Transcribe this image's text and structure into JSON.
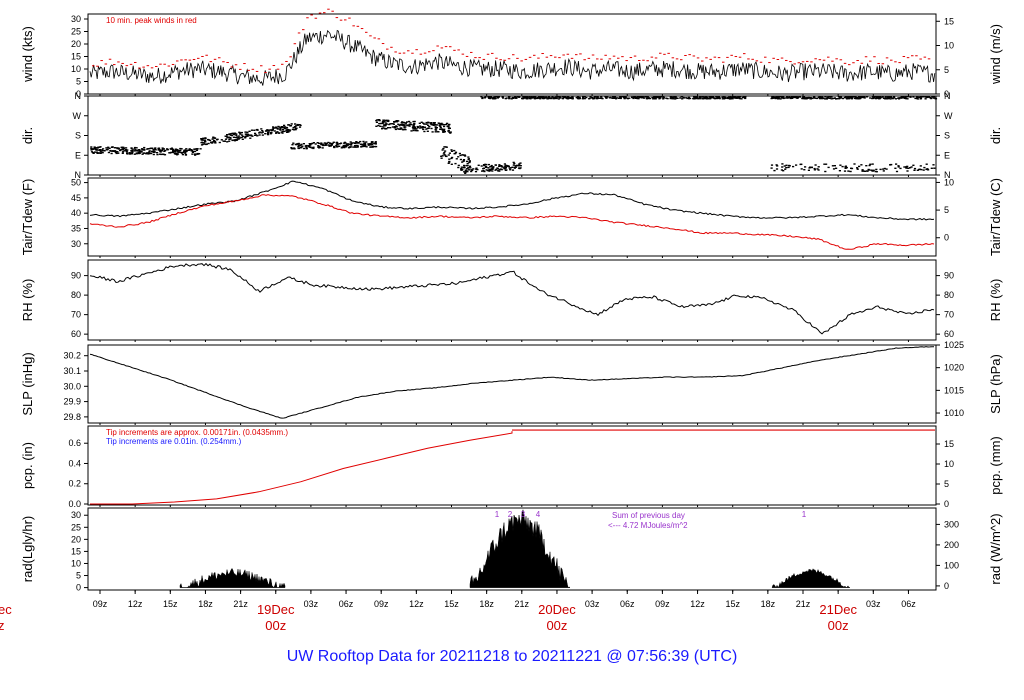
{
  "title": "UW Rooftop Data for 20211218  to  20211221 @ 07:56:39  (UTC)",
  "colors": {
    "main": "#000000",
    "dew": "#e00000",
    "precip": "#e00000",
    "title": "#1a1aff",
    "note_blue": "#1a1aff",
    "purple": "#9933cc",
    "date": "#cc0000"
  },
  "time_axis": {
    "ticks": [
      "09z",
      "12z",
      "15z",
      "18z",
      "21z",
      "03z",
      "06z",
      "09z",
      "12z",
      "15z",
      "18z",
      "21z",
      "03z",
      "06z",
      "09z",
      "12z",
      "15z",
      "18z",
      "21z",
      "03z",
      "06z"
    ],
    "day_labels": [
      {
        "date": "19Dec",
        "time": "00z"
      },
      {
        "date": "20Dec",
        "time": "00z"
      },
      {
        "date": "21Dec",
        "time": "00z"
      }
    ],
    "left_cut": {
      "date": "ec",
      "time": "z"
    }
  },
  "chart_data": [
    {
      "type": "line",
      "id": "wind",
      "ylabel_left": "wind (kts)",
      "ylabel_right": "wind (m/s)",
      "yticks_left": [
        "0",
        "5",
        "10",
        "15",
        "20",
        "25",
        "30"
      ],
      "yticks_right": [
        "0",
        "5",
        "10",
        "15"
      ],
      "annotation": "10 min. peak winds in red",
      "series": [
        {
          "name": "wind",
          "points_y_kts": [
            8,
            9,
            8,
            7,
            9,
            10,
            9,
            7,
            6,
            8,
            22,
            24,
            20,
            15,
            12,
            11,
            13,
            11,
            10,
            10,
            9,
            10,
            11,
            9,
            10,
            9,
            10,
            10,
            9,
            9,
            10,
            9,
            8,
            9,
            9,
            8,
            9,
            8,
            9,
            8
          ]
        },
        {
          "name": "10 min. peak winds",
          "points_y_kts": [
            12,
            13,
            12,
            11,
            13,
            15,
            13,
            11,
            10,
            12,
            31,
            33,
            29,
            22,
            18,
            17,
            19,
            17,
            15,
            15,
            14,
            15,
            16,
            14,
            15,
            14,
            15,
            15,
            14,
            14,
            15,
            14,
            13,
            14,
            14,
            13,
            14,
            13,
            14,
            13
          ]
        }
      ]
    },
    {
      "type": "scatter",
      "id": "dir",
      "ylabel_left": "dir.",
      "ylabel_right": "dir.",
      "yticks_left": [
        "N",
        "E",
        "S",
        "W",
        "N"
      ],
      "yticks_right": [
        "N",
        "E",
        "S",
        "W",
        "N"
      ]
    },
    {
      "type": "line",
      "id": "temp",
      "ylabel_left": "Tair/Tdew (F)",
      "ylabel_right": "Tair/Tdew (C)",
      "yticks_left": [
        "30",
        "35",
        "40",
        "45",
        "50"
      ],
      "yticks_right": [
        "0",
        "5",
        "10"
      ],
      "series": [
        {
          "name": "Tair",
          "values": [
            39.5,
            39,
            40,
            41.5,
            43,
            44,
            47,
            50.5,
            48,
            44,
            42,
            41.5,
            42,
            41.5,
            42,
            43,
            45,
            46.5,
            46,
            43,
            41,
            40,
            39,
            38.5,
            38.5,
            39,
            39.5,
            38.5,
            38,
            38
          ]
        },
        {
          "name": "Tdew",
          "values": [
            36.5,
            35.5,
            37,
            40,
            42.5,
            44,
            46,
            45.5,
            43,
            40,
            39,
            38.5,
            39,
            38.5,
            39,
            38.5,
            39,
            38.5,
            37,
            36,
            35,
            33.5,
            33.5,
            33,
            32.5,
            31.5,
            28,
            30,
            29.5,
            30
          ]
        }
      ]
    },
    {
      "type": "line",
      "id": "rh",
      "ylabel_left": "RH (%)",
      "ylabel_right": "RH (%)",
      "yticks_left": [
        "60",
        "70",
        "80",
        "90"
      ],
      "yticks_right": [
        "60",
        "70",
        "80",
        "90"
      ],
      "series": [
        {
          "name": "RH",
          "values": [
            90,
            87,
            91,
            95,
            96,
            93,
            82,
            89,
            85,
            84,
            83,
            84,
            85,
            86,
            89,
            92,
            82,
            76,
            70,
            78,
            79,
            74,
            75,
            80,
            78,
            72,
            60,
            70,
            74,
            70,
            73
          ]
        }
      ]
    },
    {
      "type": "line",
      "id": "slp",
      "ylabel_left": "SLP (inHg)",
      "ylabel_right": "SLP (hPa)",
      "yticks_left": [
        "29.8",
        "29.9",
        "30.0",
        "30.1",
        "30.2"
      ],
      "yticks_right": [
        "1010",
        "1015",
        "1020",
        "1025"
      ],
      "series": [
        {
          "name": "SLP",
          "values": [
            30.21,
            30.13,
            30.05,
            29.96,
            29.87,
            29.79,
            29.86,
            29.93,
            29.97,
            29.99,
            30.02,
            30.04,
            30.06,
            30.04,
            30.05,
            30.06,
            30.06,
            30.07,
            30.12,
            30.17,
            30.21,
            30.25,
            30.26
          ]
        }
      ]
    },
    {
      "type": "line",
      "id": "pcp",
      "ylabel_left": "pcp. (in)",
      "ylabel_right": "pcp. (mm)",
      "yticks_left": [
        "0.0",
        "0.2",
        "0.4",
        "0.6"
      ],
      "yticks_right": [
        "0",
        "5",
        "10",
        "15"
      ],
      "note_red": "Tip increments are approx. 0.00171in. (0.0435mm.)",
      "note_blue": "Tip increments are 0.01in. (0.254mm.)",
      "series": [
        {
          "name": "pcp",
          "values": [
            0,
            0,
            0.02,
            0.05,
            0.12,
            0.22,
            0.35,
            0.45,
            0.55,
            0.63,
            0.7,
            0.72,
            0.73,
            0.73,
            0.73,
            0.73,
            0.73,
            0.73,
            0.73,
            0.73,
            0.73,
            0.73,
            0.73,
            0.73
          ]
        }
      ]
    },
    {
      "type": "area",
      "id": "rad",
      "ylabel_left": "rad(Lgly/hr)",
      "ylabel_right": "rad (W/m^2)",
      "yticks_left": [
        "0",
        "5",
        "10",
        "15",
        "20",
        "25",
        "30"
      ],
      "yticks_right": [
        "0",
        "100",
        "200",
        "300"
      ],
      "note_title": "Sum of previous day",
      "note_value": "<--- 4.72 MJoules/m^2",
      "markers": [
        "1",
        "2",
        "3",
        "4",
        "1"
      ]
    }
  ]
}
